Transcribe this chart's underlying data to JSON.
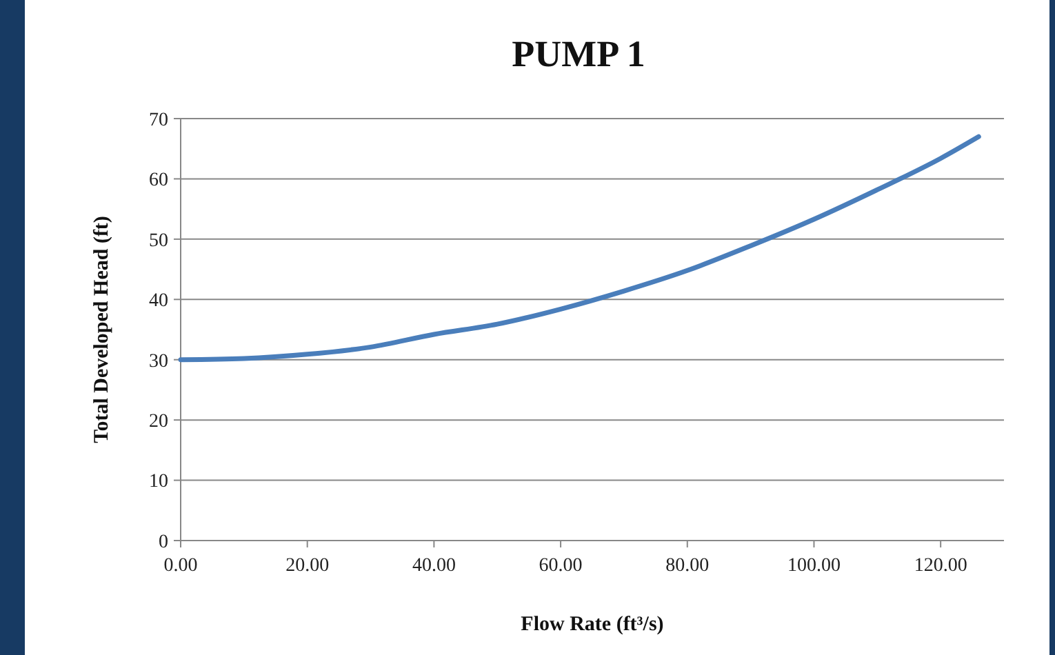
{
  "chart_data": {
    "type": "line",
    "title": "PUMP 1",
    "xlabel": "Flow Rate (ft³/s)",
    "ylabel": "Total Developed Head (ft)",
    "x": [
      0,
      10,
      20,
      30,
      40,
      50,
      60,
      70,
      80,
      90,
      100,
      110,
      120,
      126
    ],
    "series": [
      {
        "color": "#4a7ebb",
        "values": [
          30,
          30.2,
          30.9,
          32.1,
          34.2,
          35.9,
          38.4,
          41.4,
          44.8,
          48.9,
          53.3,
          58.2,
          63.4,
          67
        ]
      }
    ],
    "xlim": [
      0,
      130
    ],
    "xticks": [
      {
        "value": 0,
        "label": "0.00"
      },
      {
        "value": 20,
        "label": "20.00"
      },
      {
        "value": 40,
        "label": "40.00"
      },
      {
        "value": 60,
        "label": "60.00"
      },
      {
        "value": 80,
        "label": "80.00"
      },
      {
        "value": 100,
        "label": "100.00"
      },
      {
        "value": 120,
        "label": "120.00"
      }
    ],
    "ylim": [
      0,
      70
    ],
    "yticks": [
      0,
      10,
      20,
      30,
      40,
      50,
      60,
      70
    ],
    "grid": "y",
    "marker": "none",
    "line_style": "solid"
  }
}
